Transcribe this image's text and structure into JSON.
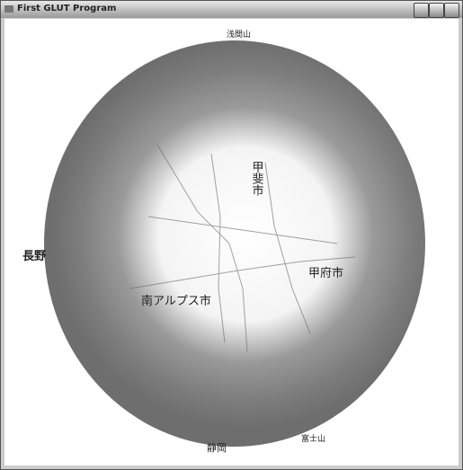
{
  "window": {
    "title": "First GLUT Program"
  },
  "map": {
    "labels": [
      "長野",
      "甲斐市",
      "甲府市",
      "南アルプス市",
      "静岡",
      "富士山",
      "浅間山"
    ]
  }
}
